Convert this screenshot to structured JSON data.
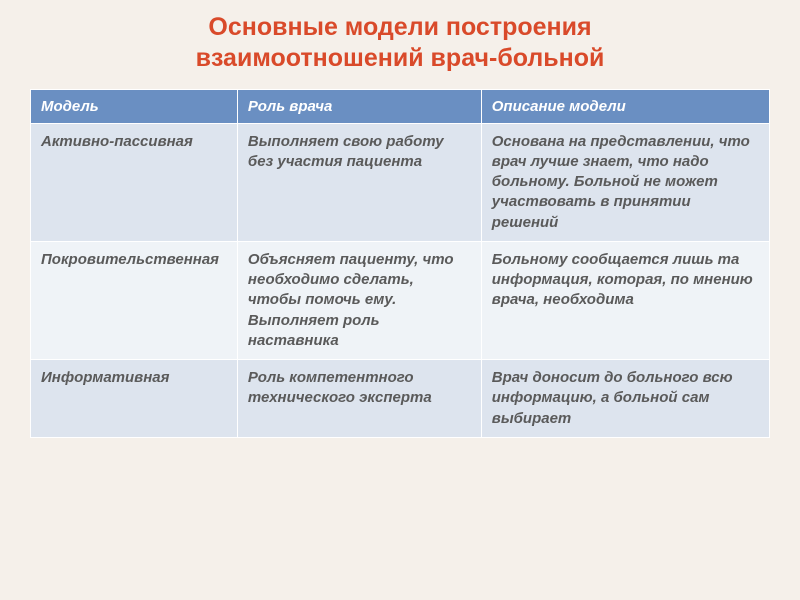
{
  "title_line1": "Основные модели построения",
  "title_line2": "взаимоотношений врач-больной",
  "table": {
    "headers": [
      "Модель",
      "Роль врача",
      "Описание модели"
    ],
    "rows": [
      {
        "model": "Активно-пассивная",
        "role": "Выполняет свою работу без участия пациента",
        "desc": "Основана на представлении, что врач лучше знает, что надо больному. Больной не может участвовать в принятии решений"
      },
      {
        "model": "Покровительственная",
        "role": "Объясняет пациенту, что необходимо сделать, чтобы помочь ему. Выполняет роль наставника",
        "desc": "Больному сообщается лишь та информация, которая, по мнению врача, необходима"
      },
      {
        "model": "Информативная",
        "role": "Роль компетентного технического эксперта",
        "desc": "Врач доносит до больного всю информацию, а больной сам выбирает"
      }
    ]
  },
  "colors": {
    "background": "#f5f0ea",
    "title": "#d94a2a",
    "header_bg": "#6a8fc2",
    "header_text": "#ffffff",
    "row_odd": "#dde4ee",
    "row_even": "#eff3f7",
    "cell_text": "#5a5a5a"
  }
}
